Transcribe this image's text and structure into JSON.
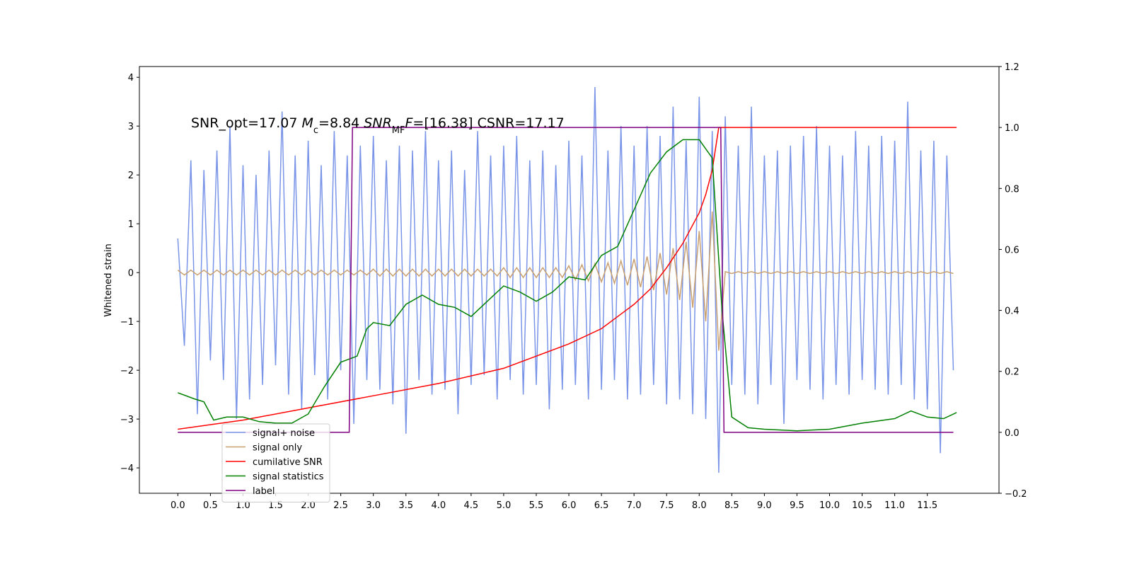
{
  "chart_data": {
    "type": "line",
    "annotation": [
      {
        "text": "SNR_opt=17.07 "
      },
      {
        "text": "M",
        "style": "italic"
      },
      {
        "text": "c",
        "style": "sub"
      },
      {
        "text": "=8.84    "
      },
      {
        "text": "SNR",
        "style": "italic"
      },
      {
        "text": "MF",
        "style": "sub"
      },
      {
        "text": "F",
        "style": "italic"
      },
      {
        "text": "=[16.38] CSNR=17.17"
      }
    ],
    "y_label": "Whitened strain",
    "xlim": [
      -0.59,
      12.6
    ],
    "ylim": [
      -4.52,
      4.22
    ],
    "y2lim": [
      -0.2,
      1.2
    ],
    "xticks": [
      {
        "value": 0,
        "label": "0.0"
      },
      0.5,
      {
        "value": 1,
        "label": "1.0"
      },
      1.5,
      {
        "value": 2,
        "label": "2.0"
      },
      2.5,
      {
        "value": 3,
        "label": "3.0"
      },
      3.5,
      {
        "value": 4,
        "label": "4.0"
      },
      4.5,
      {
        "value": 5,
        "label": "5.0"
      },
      5.5,
      {
        "value": 6,
        "label": "6.0"
      },
      6.5,
      {
        "value": 7,
        "label": "7.0"
      },
      7.5,
      {
        "value": 8,
        "label": "8.0"
      },
      8.5,
      {
        "value": 9,
        "label": "9.0"
      },
      9.5,
      {
        "value": 10,
        "label": "10.0"
      },
      10.5,
      {
        "value": 11,
        "label": "11.0"
      },
      11.5
    ],
    "yticks": [
      {
        "value": -4,
        "label": "−4"
      },
      {
        "value": -3,
        "label": "−3"
      },
      {
        "value": -2,
        "label": "−2"
      },
      {
        "value": -1,
        "label": "−1"
      },
      0,
      1,
      2,
      3,
      4
    ],
    "y2ticks": [
      {
        "value": -0.2,
        "label": "−0.2"
      },
      {
        "value": 0,
        "label": "0.0"
      },
      {
        "value": 0.2,
        "label": "0.2"
      },
      {
        "value": 0.4,
        "label": "0.4"
      },
      {
        "value": 0.6,
        "label": "0.6"
      },
      {
        "value": 0.8,
        "label": "0.8"
      },
      {
        "value": 1,
        "label": "1.0"
      },
      {
        "value": 1.2,
        "label": "1.2"
      }
    ],
    "legend": "lower left",
    "x": [
      0,
      0.1,
      0.2,
      0.3,
      0.4,
      0.5,
      0.6,
      0.7,
      0.8,
      0.9,
      1,
      1.1,
      1.2,
      1.3,
      1.4,
      1.5,
      1.6,
      1.7,
      1.8,
      1.9,
      2,
      2.1,
      2.2,
      2.3,
      2.4,
      2.5,
      2.6,
      2.7,
      2.8,
      2.9,
      3,
      3.1,
      3.2,
      3.3,
      3.4,
      3.5,
      3.6,
      3.7,
      3.8,
      3.9,
      4,
      4.1,
      4.2,
      4.3,
      4.4,
      4.5,
      4.6,
      4.7,
      4.8,
      4.9,
      5,
      5.1,
      5.2,
      5.3,
      5.4,
      5.5,
      5.6,
      5.7,
      5.8,
      5.9,
      6,
      6.1,
      6.2,
      6.3,
      6.4,
      6.5,
      6.6,
      6.7,
      6.8,
      6.9,
      7,
      7.1,
      7.2,
      7.3,
      7.4,
      7.5,
      7.6,
      7.7,
      7.8,
      7.9,
      8,
      8.1,
      8.2,
      8.3,
      8.4,
      8.5,
      8.6,
      8.7,
      8.8,
      8.9,
      9,
      9.1,
      9.2,
      9.3,
      9.4,
      9.5,
      9.6,
      9.7,
      9.8,
      9.9,
      10,
      10.1,
      10.2,
      10.3,
      10.4,
      10.5,
      10.6,
      10.7,
      10.8,
      10.9,
      11,
      11.1,
      11.2,
      11.3,
      11.4,
      11.5,
      11.6,
      11.7,
      11.8,
      11.9
    ],
    "series": [
      {
        "name": "signal+ noise",
        "color": "#7a95e8",
        "values": [
          0.7,
          -1.5,
          2.3,
          -2.9,
          2.1,
          -1.8,
          2.5,
          -2.2,
          3.0,
          -3.0,
          2.2,
          -2.6,
          2.0,
          -2.3,
          2.5,
          -1.9,
          3.3,
          -2.5,
          2.4,
          -2.8,
          2.7,
          -2.1,
          2.2,
          -2.6,
          2.9,
          -2.0,
          2.4,
          -3.1,
          2.6,
          -2.2,
          2.8,
          -2.4,
          2.3,
          -2.7,
          2.6,
          -3.3,
          2.5,
          -2.2,
          2.9,
          -2.5,
          2.3,
          -2.4,
          2.5,
          -2.9,
          2.1,
          -2.3,
          2.9,
          -2.1,
          2.4,
          -2.6,
          2.6,
          -2.2,
          2.8,
          -2.5,
          2.3,
          -2.3,
          2.5,
          -2.8,
          2.2,
          -2.4,
          2.7,
          -2.3,
          2.4,
          -2.6,
          3.8,
          -2.4,
          2.5,
          -2.2,
          3.0,
          -2.6,
          2.6,
          -2.5,
          3.0,
          -2.3,
          2.8,
          -2.7,
          3.4,
          -2.6,
          2.7,
          -2.9,
          3.6,
          -3.0,
          2.9,
          -4.1,
          3.2,
          -2.3,
          2.6,
          -2.5,
          3.4,
          -2.7,
          2.4,
          -2.3,
          2.5,
          -3.1,
          2.6,
          -2.2,
          2.8,
          -2.4,
          3.0,
          -2.6,
          2.6,
          -2.3,
          2.4,
          -2.5,
          2.9,
          -2.2,
          2.6,
          -2.4,
          2.8,
          -2.5,
          2.7,
          -2.3,
          3.5,
          -2.6,
          2.5,
          -2.8,
          2.7,
          -3.7,
          2.4,
          -2.0
        ]
      },
      {
        "name": "signal only",
        "color": "#c9a070",
        "values": [
          0.05,
          -0.05,
          0.05,
          -0.05,
          0.05,
          -0.05,
          0.05,
          -0.05,
          0.05,
          -0.05,
          0.05,
          -0.05,
          0.05,
          -0.05,
          0.05,
          -0.05,
          0.05,
          -0.05,
          0.05,
          -0.05,
          0.05,
          -0.05,
          0.05,
          -0.05,
          0.05,
          -0.05,
          0.05,
          -0.05,
          0.05,
          -0.05,
          0.07,
          -0.07,
          0.07,
          -0.07,
          0.07,
          -0.07,
          0.07,
          -0.07,
          0.07,
          -0.07,
          0.07,
          -0.07,
          0.07,
          -0.07,
          0.07,
          -0.07,
          0.07,
          -0.07,
          0.07,
          -0.07,
          0.1,
          -0.1,
          0.1,
          -0.1,
          0.1,
          -0.1,
          0.1,
          -0.1,
          0.1,
          -0.1,
          0.14,
          -0.15,
          0.16,
          -0.17,
          0.18,
          -0.19,
          0.2,
          -0.22,
          0.24,
          -0.26,
          0.28,
          -0.3,
          0.33,
          -0.36,
          0.4,
          -0.45,
          0.5,
          -0.56,
          0.63,
          -0.72,
          0.85,
          -1.0,
          1.25,
          -1.6,
          0.02,
          -0.02,
          0.02,
          -0.02,
          0.02,
          -0.02,
          0.02,
          -0.02,
          0.02,
          -0.02,
          0.02,
          -0.02,
          0.02,
          -0.02,
          0.02,
          -0.02,
          0.02,
          -0.02,
          0.02,
          -0.02,
          0.02,
          -0.02,
          0.02,
          -0.02,
          0.02,
          -0.02,
          0.02,
          -0.02,
          0.02,
          -0.02,
          0.02,
          -0.02,
          0.02,
          -0.02,
          0.02,
          -0.02
        ]
      },
      {
        "name": "cumilative SNR",
        "color": "#ff0000",
        "axis": "y2",
        "x": [
          0,
          1,
          2,
          3,
          4,
          5,
          5.5,
          6,
          6.5,
          7,
          7.25,
          7.5,
          7.75,
          8,
          8.1,
          8.2,
          8.3,
          11.95
        ],
        "values": [
          0.01,
          0.04,
          0.08,
          0.12,
          0.16,
          0.21,
          0.25,
          0.29,
          0.34,
          0.42,
          0.47,
          0.54,
          0.62,
          0.72,
          0.78,
          0.86,
          1.0,
          1.0
        ]
      },
      {
        "name": "signal statistics",
        "color": "#008000",
        "axis": "y2",
        "x": [
          0,
          0.25,
          0.4,
          0.55,
          0.75,
          1,
          1.25,
          1.5,
          1.75,
          2,
          2.25,
          2.5,
          2.75,
          2.9,
          3,
          3.25,
          3.5,
          3.75,
          4,
          4.25,
          4.5,
          4.75,
          5,
          5.25,
          5.5,
          5.75,
          6,
          6.25,
          6.5,
          6.75,
          7,
          7.25,
          7.5,
          7.75,
          8,
          8.2,
          8.35,
          8.5,
          8.75,
          9,
          9.5,
          10,
          10.5,
          11,
          11.25,
          11.5,
          11.75,
          11.95
        ],
        "values": [
          0.13,
          0.11,
          0.1,
          0.04,
          0.05,
          0.05,
          0.035,
          0.03,
          0.03,
          0.06,
          0.15,
          0.23,
          0.25,
          0.34,
          0.36,
          0.35,
          0.42,
          0.45,
          0.42,
          0.41,
          0.38,
          0.43,
          0.48,
          0.46,
          0.43,
          0.46,
          0.51,
          0.5,
          0.58,
          0.61,
          0.73,
          0.85,
          0.92,
          0.96,
          0.96,
          0.9,
          0.4,
          0.05,
          0.015,
          0.01,
          0.005,
          0.01,
          0.03,
          0.045,
          0.07,
          0.05,
          0.045,
          0.065
        ]
      },
      {
        "name": "label",
        "color": "#800080",
        "axis": "y2",
        "x": [
          0,
          2.63,
          2.68,
          8.33,
          8.38,
          11.9
        ],
        "values": [
          0,
          0,
          1,
          1,
          0,
          0
        ]
      }
    ]
  }
}
